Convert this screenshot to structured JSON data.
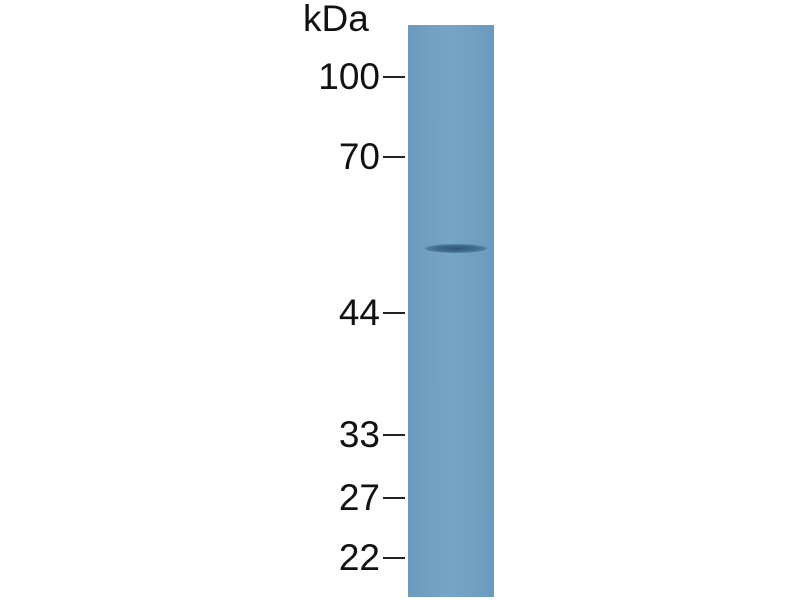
{
  "unit_label": "kDa",
  "markers": [
    {
      "label": "100",
      "kda": 100
    },
    {
      "label": "70",
      "kda": 70
    },
    {
      "label": "44",
      "kda": 44
    },
    {
      "label": "33",
      "kda": 33
    },
    {
      "label": "27",
      "kda": 27
    },
    {
      "label": "22",
      "kda": 22
    }
  ],
  "lane": {
    "color": "#6f9ec0",
    "band_color": "#35607f",
    "band_kda": 55
  }
}
